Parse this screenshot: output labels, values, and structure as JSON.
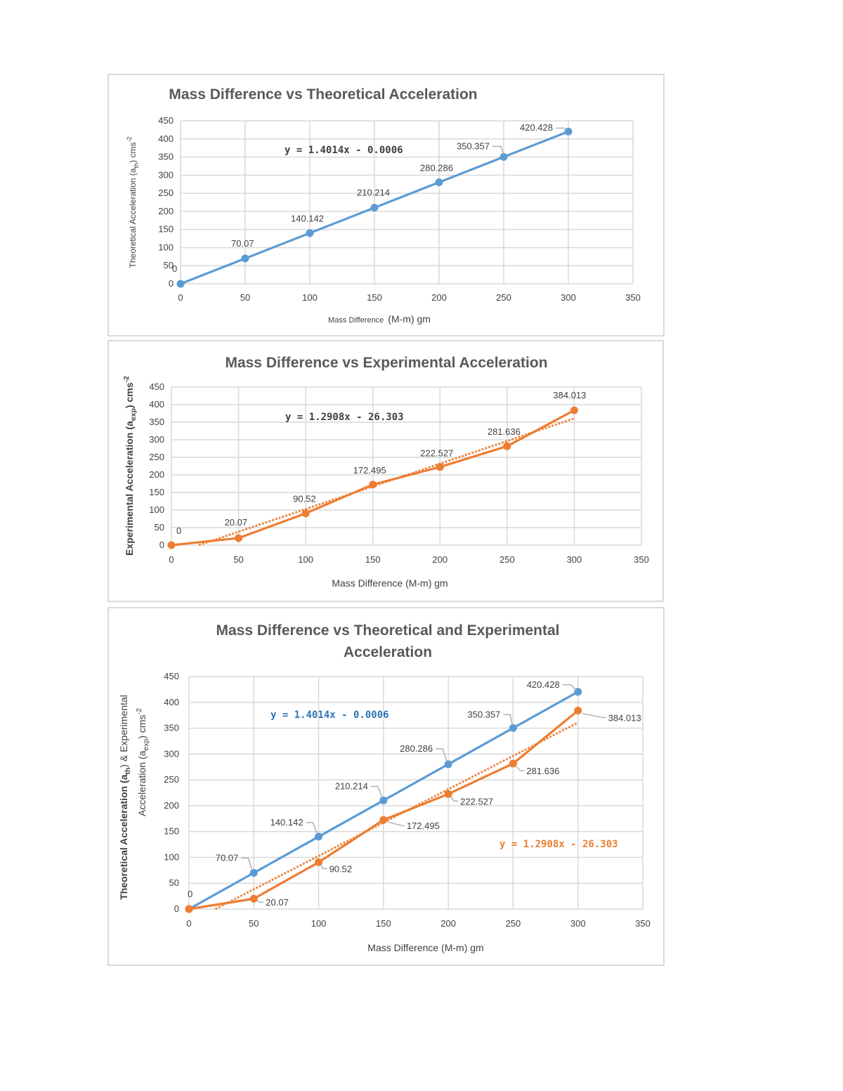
{
  "colors": {
    "theoretical": "#5b9bd5",
    "experimental": "#ed7d31",
    "grid": "#d9d9d9",
    "label": "#404040",
    "title": "#595959"
  },
  "chart_data": [
    {
      "type": "line",
      "title": "Mass Difference vs Theoretical Acceleration",
      "xlabel": "Mass Difference",
      "xlabel_unit": "(M-m) gm",
      "ylabel": "Theoretical Acceleration (a",
      "ylabel_sub": "th",
      "ylabel_end": ") cms",
      "ylabel_sup": "-2",
      "xlim": [
        0,
        350
      ],
      "ylim": [
        0,
        450
      ],
      "xticks": [
        "0",
        "50",
        "100",
        "150",
        "200",
        "250",
        "300",
        "350"
      ],
      "yticks": [
        "0",
        "50",
        "100",
        "150",
        "200",
        "250",
        "300",
        "350",
        "400",
        "450"
      ],
      "grid": true,
      "series": [
        {
          "color": "theoretical",
          "x": [
            0,
            50,
            100,
            150,
            200,
            250,
            300
          ],
          "y": [
            0,
            70.07,
            140.142,
            210.214,
            280.286,
            350.357,
            420.428
          ],
          "labels": [
            "0",
            "70.07",
            "140.142",
            "210.214",
            "280.286",
            "350.357",
            "420.428"
          ]
        }
      ],
      "equations": [
        {
          "text": "y = 1.4014x - 0.0006",
          "color": "#404040"
        }
      ]
    },
    {
      "type": "line",
      "title": "Mass Difference vs Experimental Acceleration",
      "xlabel": "Mass Difference (M-m) gm",
      "ylabel": "Experimental Acceleration (a",
      "ylabel_sub": "exp",
      "ylabel_end": ") cms",
      "ylabel_sup": "-2",
      "xlim": [
        0,
        350
      ],
      "ylim": [
        0,
        450
      ],
      "xticks": [
        "0",
        "50",
        "100",
        "150",
        "200",
        "250",
        "300",
        "350"
      ],
      "yticks": [
        "0",
        "50",
        "100",
        "150",
        "200",
        "250",
        "300",
        "350",
        "400",
        "450"
      ],
      "grid": true,
      "series": [
        {
          "color": "experimental",
          "x": [
            0,
            50,
            100,
            150,
            200,
            250,
            300
          ],
          "y": [
            0,
            20.07,
            90.52,
            172.495,
            222.527,
            281.636,
            384.013
          ],
          "labels": [
            "0",
            "20.07",
            "90.52",
            "172.495",
            "222.527",
            "281.636",
            "384.013"
          ],
          "trendline": {
            "slope": 1.2908,
            "intercept": -26.303
          }
        }
      ],
      "equations": [
        {
          "text": "y = 1.2908x - 26.303",
          "color": "#404040"
        }
      ]
    },
    {
      "type": "line",
      "title_lines": [
        "Mass Difference vs Theoretical and Experimental",
        "Acceleration"
      ],
      "xlabel": "Mass Difference (M-m) gm",
      "ylabel_line1": "Theoretical Acceleration (a",
      "ylabel_line1_sub": "th",
      "ylabel_line1_end": ") & Experimental",
      "ylabel_line2": "Acceleration (a",
      "ylabel_line2_sub": "exp",
      "ylabel_line2_end": ") cms",
      "ylabel_sup": "-2",
      "xlim": [
        0,
        350
      ],
      "ylim": [
        0,
        450
      ],
      "xticks": [
        "0",
        "50",
        "100",
        "150",
        "200",
        "250",
        "300",
        "350"
      ],
      "yticks": [
        "0",
        "50",
        "100",
        "150",
        "200",
        "250",
        "300",
        "350",
        "400",
        "450"
      ],
      "grid": true,
      "series": [
        {
          "color": "theoretical",
          "x": [
            0,
            50,
            100,
            150,
            200,
            250,
            300
          ],
          "y": [
            0,
            70.07,
            140.142,
            210.214,
            280.286,
            350.357,
            420.428
          ],
          "labels": [
            "0",
            "70.07",
            "140.142",
            "210.214",
            "280.286",
            "350.357",
            "420.428"
          ]
        },
        {
          "color": "experimental",
          "x": [
            0,
            50,
            100,
            150,
            200,
            250,
            300
          ],
          "y": [
            0,
            20.07,
            90.52,
            172.495,
            222.527,
            281.636,
            384.013
          ],
          "labels": [
            "",
            "20.07",
            "90.52",
            "172.495",
            "222.527",
            "281.636",
            "384.013"
          ],
          "trendline": {
            "slope": 1.2908,
            "intercept": -26.303
          }
        }
      ],
      "equations": [
        {
          "text": "y = 1.4014x - 0.0006",
          "color": "#2e75b6"
        },
        {
          "text": "y = 1.2908x - 26.303",
          "color": "#ed7d31"
        }
      ]
    }
  ]
}
